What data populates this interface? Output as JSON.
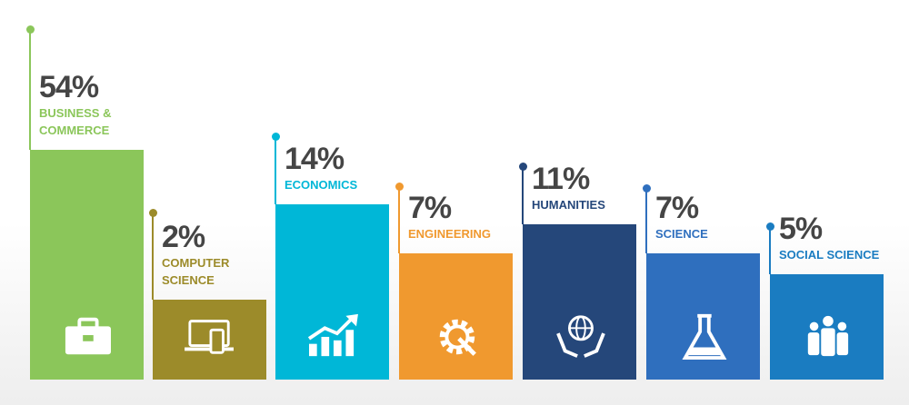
{
  "items": [
    {
      "value": "54%",
      "label": "BUSINESS & COMMERCE"
    },
    {
      "value": "2%",
      "label": "COMPUTER SCIENCE"
    },
    {
      "value": "14%",
      "label": "ECONOMICS"
    },
    {
      "value": "7%",
      "label": "ENGINEERING"
    },
    {
      "value": "11%",
      "label": "HUMANITIES"
    },
    {
      "value": "7%",
      "label": "SCIENCE"
    },
    {
      "value": "5%",
      "label": "SOCIAL SCIENCE"
    }
  ]
}
